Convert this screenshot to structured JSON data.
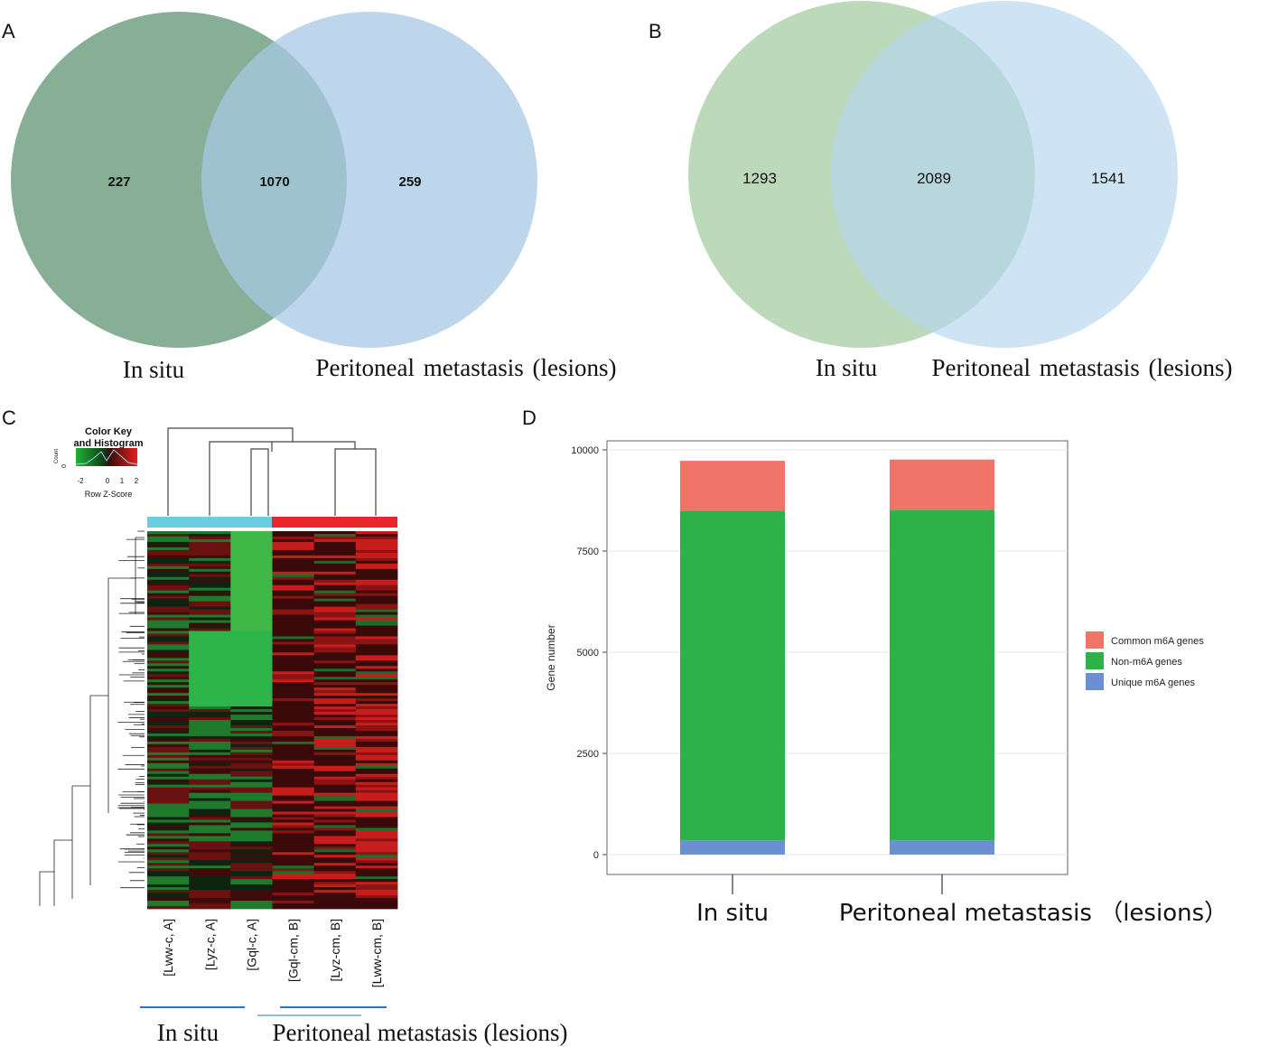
{
  "chart_data": [
    {
      "panel": "A",
      "type": "venn",
      "sets": [
        {
          "name": "In situ",
          "unique": 227
        },
        {
          "name": "Peritoneal metastasis (lesions)",
          "unique": 259
        }
      ],
      "intersection": 1070,
      "colors": {
        "left": "#5d9472",
        "right": "#a7c8e6"
      }
    },
    {
      "panel": "B",
      "type": "venn",
      "sets": [
        {
          "name": "In situ",
          "unique": 1293
        },
        {
          "name": "Peritoneal metastasis (lesions)",
          "unique": 1541
        }
      ],
      "intersection": 2089,
      "colors": {
        "left": "#abd1a9",
        "right": "#b3d6ef"
      }
    },
    {
      "panel": "C",
      "type": "heatmap",
      "color_key": {
        "title": "Color Key",
        "subtitle": "and Histogram",
        "ylabel": "Count",
        "ytick": "0",
        "xlabel": "Row Z-Score",
        "ticks": [
          "-2",
          "0",
          "1",
          "2"
        ]
      },
      "columns": [
        "[Lww-c, A]",
        "[Lyz-c, A]",
        "[Gql-c, A]",
        "[Gql-cm, B]",
        "[Lyz-cm, B]",
        "[Lww-cm, B]"
      ],
      "groups": [
        {
          "name": "In situ",
          "columns": [
            0,
            1,
            2
          ],
          "color": "#6ccde0"
        },
        {
          "name": "Peritoneal metastasis (lesions)",
          "columns": [
            3,
            4,
            5
          ],
          "color": "#e8262c"
        }
      ]
    },
    {
      "panel": "D",
      "type": "bar",
      "stacked": true,
      "categories": [
        "In situ",
        "Peritoneal metastasis (lesions)"
      ],
      "category_labels": [
        "In situ",
        "Peritoneal metastasis （lesions）"
      ],
      "series": [
        {
          "name": "Unique m6A genes",
          "color": "#6c8fd3",
          "values": [
            350,
            350
          ]
        },
        {
          "name": "Non-m6A genes",
          "color": "#2fb14a",
          "values": [
            8150,
            8170
          ]
        },
        {
          "name": "Common m6A genes",
          "color": "#f07468",
          "values": [
            1230,
            1240
          ]
        }
      ],
      "legend_order": [
        "Common m6A genes",
        "Non-m6A genes",
        "Unique m6A genes"
      ],
      "ylabel": "Gene number",
      "yticks": [
        "0",
        "2500",
        "5000",
        "7500",
        "10000"
      ],
      "ylim": [
        0,
        10000
      ]
    }
  ]
}
